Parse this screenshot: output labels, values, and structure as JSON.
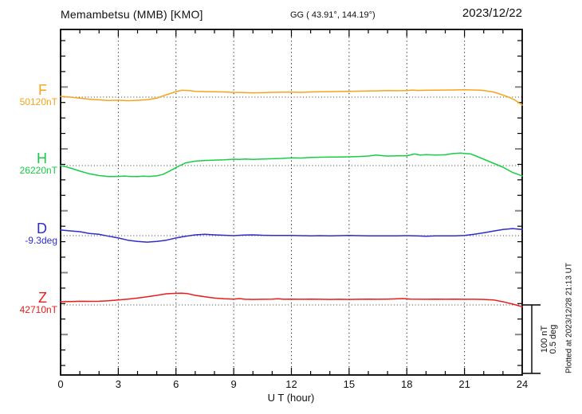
{
  "header": {
    "station_title": "Memambetsu (MMB)  [KMO]",
    "gg_coords": "GG ( 43.91°, 144.19°)",
    "date": "2023/12/22"
  },
  "axis": {
    "x_label": "U T (hour)",
    "x_ticks": [
      "0",
      "3",
      "6",
      "9",
      "12",
      "15",
      "18",
      "21",
      "24"
    ]
  },
  "scale_bar": {
    "line1": "100 nT",
    "line2": "0.5 deg"
  },
  "footer_note": "Plotted at 2023/12/28 21:13 UT",
  "chart_data": {
    "type": "line",
    "title": "Memambetsu (MMB) [KMO] magnetogram 2023/12/22",
    "xlabel": "U T (hour)",
    "x_range": [
      0,
      24
    ],
    "x_ticks": [
      0,
      3,
      6,
      9,
      12,
      15,
      18,
      21,
      24
    ],
    "grid": "dotted vertical every 3 h; dotted horizontal baseline per component",
    "scale_per_division": {
      "nT": 100,
      "deg": 0.5
    },
    "series": [
      {
        "name": "F",
        "baseline_label": "50120nT",
        "baseline_value": 50120,
        "unit": "nT",
        "color": "#F7A419",
        "points": [
          [
            0,
            1
          ],
          [
            0.5,
            0
          ],
          [
            1,
            -1.5
          ],
          [
            1.5,
            -3
          ],
          [
            2,
            -4
          ],
          [
            2.5,
            -5
          ],
          [
            3,
            -4.5
          ],
          [
            3.5,
            -5.2
          ],
          [
            4,
            -4.7
          ],
          [
            4.5,
            -3.8
          ],
          [
            5,
            -1.5
          ],
          [
            5.5,
            3.5
          ],
          [
            6,
            8
          ],
          [
            6.3,
            10
          ],
          [
            6.7,
            9.5
          ],
          [
            7,
            8.5
          ],
          [
            7.5,
            8
          ],
          [
            8,
            7.8
          ],
          [
            8.5,
            7.5
          ],
          [
            9,
            7
          ],
          [
            9.5,
            6.8
          ],
          [
            10,
            6.3
          ],
          [
            10.5,
            6.5
          ],
          [
            11,
            7
          ],
          [
            11.5,
            7.2
          ],
          [
            12,
            7.3
          ],
          [
            12.5,
            7
          ],
          [
            13,
            7.5
          ],
          [
            13.5,
            7.8
          ],
          [
            14,
            8
          ],
          [
            14.5,
            8.2
          ],
          [
            15,
            8.5
          ],
          [
            15.5,
            8.7
          ],
          [
            16,
            9
          ],
          [
            16.5,
            9.2
          ],
          [
            17,
            9.5
          ],
          [
            17.5,
            9.3
          ],
          [
            18,
            9.7
          ],
          [
            18.3,
            10.3
          ],
          [
            18.6,
            9.8
          ],
          [
            19,
            10
          ],
          [
            19.5,
            10.2
          ],
          [
            20,
            10.3
          ],
          [
            20.5,
            10.5
          ],
          [
            21,
            10.8
          ],
          [
            21.4,
            10.5
          ],
          [
            21.8,
            10.2
          ],
          [
            22,
            9.5
          ],
          [
            22.5,
            7.5
          ],
          [
            23,
            3
          ],
          [
            23.3,
            0
          ],
          [
            23.6,
            -4
          ],
          [
            24,
            -11.5
          ]
        ]
      },
      {
        "name": "H",
        "baseline_label": "26220nT",
        "baseline_value": 26220,
        "unit": "nT",
        "color": "#17CE45",
        "points": [
          [
            0,
            0
          ],
          [
            0.3,
            -2
          ],
          [
            0.5,
            -3.5
          ],
          [
            1,
            -8
          ],
          [
            1.5,
            -12
          ],
          [
            2,
            -14.5
          ],
          [
            2.5,
            -16
          ],
          [
            3,
            -15.8
          ],
          [
            3.3,
            -15.2
          ],
          [
            3.6,
            -15.8
          ],
          [
            4,
            -16
          ],
          [
            4.3,
            -15.4
          ],
          [
            4.6,
            -15.8
          ],
          [
            5,
            -15
          ],
          [
            5.3,
            -13
          ],
          [
            5.6,
            -9
          ],
          [
            6,
            -3
          ],
          [
            6.2,
            0
          ],
          [
            6.5,
            4
          ],
          [
            7,
            6.5
          ],
          [
            7.5,
            7.5
          ],
          [
            8,
            8
          ],
          [
            8.5,
            8.5
          ],
          [
            9,
            9.3
          ],
          [
            9.3,
            9
          ],
          [
            9.6,
            9.5
          ],
          [
            10,
            9
          ],
          [
            10.5,
            9.5
          ],
          [
            11,
            10
          ],
          [
            11.5,
            10.5
          ],
          [
            12,
            11.3
          ],
          [
            12.5,
            11
          ],
          [
            13,
            12
          ],
          [
            13.5,
            12.2
          ],
          [
            14,
            12.4
          ],
          [
            14.5,
            12.6
          ],
          [
            15,
            12.8
          ],
          [
            15.5,
            13.2
          ],
          [
            16,
            14
          ],
          [
            16.4,
            15.5
          ],
          [
            16.7,
            14.5
          ],
          [
            17,
            14
          ],
          [
            17.5,
            14.2
          ],
          [
            18,
            14.4
          ],
          [
            18.4,
            17
          ],
          [
            18.7,
            15.5
          ],
          [
            19,
            15.9
          ],
          [
            19.5,
            15.5
          ],
          [
            20,
            15.8
          ],
          [
            20.4,
            17.5
          ],
          [
            20.8,
            18.2
          ],
          [
            21,
            17.8
          ],
          [
            21.3,
            17.2
          ],
          [
            21.6,
            14
          ],
          [
            22,
            9.3
          ],
          [
            22.5,
            3.5
          ],
          [
            23,
            -2.3
          ],
          [
            23.5,
            -10
          ],
          [
            24,
            -15
          ]
        ]
      },
      {
        "name": "D",
        "baseline_label": "-9.3deg",
        "baseline_value": -9.3,
        "unit": "deg",
        "color": "#2C2DCB",
        "points": [
          [
            0,
            0.041
          ],
          [
            0.5,
            0.035
          ],
          [
            1,
            0.029
          ],
          [
            1.5,
            0.016
          ],
          [
            2,
            0.01
          ],
          [
            2.5,
            -0.004
          ],
          [
            3,
            -0.017
          ],
          [
            3.5,
            -0.033
          ],
          [
            4,
            -0.042
          ],
          [
            4.5,
            -0.047
          ],
          [
            5,
            -0.042
          ],
          [
            5.5,
            -0.033
          ],
          [
            6,
            -0.017
          ],
          [
            6.5,
            -0.004
          ],
          [
            7,
            0.006
          ],
          [
            7.5,
            0.01
          ],
          [
            8,
            0.006
          ],
          [
            8.5,
            0.003
          ],
          [
            9,
            0
          ],
          [
            9.5,
            0.004
          ],
          [
            10,
            0.006
          ],
          [
            10.5,
            0.003
          ],
          [
            11,
            0.002
          ],
          [
            11.5,
            0.001
          ],
          [
            12,
            0.002
          ],
          [
            12.5,
            0
          ],
          [
            13,
            -0.001
          ],
          [
            13.5,
            0
          ],
          [
            14,
            -0.001
          ],
          [
            14.5,
            0
          ],
          [
            15,
            0.002
          ],
          [
            15.5,
            0
          ],
          [
            16,
            -0.002
          ],
          [
            16.5,
            -0.001
          ],
          [
            17,
            -0.002
          ],
          [
            17.5,
            -0.001
          ],
          [
            18,
            0
          ],
          [
            18.5,
            -0.002
          ],
          [
            19,
            -0.004
          ],
          [
            19.5,
            -0.002
          ],
          [
            20,
            -0.001
          ],
          [
            20.5,
            -0.002
          ],
          [
            21,
            0.002
          ],
          [
            21.5,
            0.01
          ],
          [
            22,
            0.021
          ],
          [
            22.5,
            0.033
          ],
          [
            23,
            0.045
          ],
          [
            23.5,
            0.052
          ],
          [
            24,
            0.045
          ]
        ]
      },
      {
        "name": "Z",
        "baseline_label": "42710nT",
        "baseline_value": 42710,
        "unit": "nT",
        "color": "#EA1C1C",
        "points": [
          [
            0,
            4.7
          ],
          [
            0.5,
            5
          ],
          [
            1,
            5.4
          ],
          [
            1.5,
            5.2
          ],
          [
            2,
            5.4
          ],
          [
            2.5,
            6.2
          ],
          [
            3,
            7.3
          ],
          [
            3.5,
            8.5
          ],
          [
            4,
            10
          ],
          [
            4.5,
            12
          ],
          [
            5,
            14
          ],
          [
            5.5,
            16.3
          ],
          [
            6,
            17
          ],
          [
            6.3,
            17.2
          ],
          [
            6.6,
            16.5
          ],
          [
            7,
            14
          ],
          [
            7.5,
            12
          ],
          [
            8,
            10
          ],
          [
            8.5,
            9
          ],
          [
            9,
            8.5
          ],
          [
            9.3,
            9.3
          ],
          [
            9.6,
            8.3
          ],
          [
            10,
            8
          ],
          [
            10.5,
            8.3
          ],
          [
            11,
            8.5
          ],
          [
            11.3,
            9
          ],
          [
            11.6,
            8.3
          ],
          [
            12,
            8.5
          ],
          [
            12.5,
            8.3
          ],
          [
            13,
            8.5
          ],
          [
            13.5,
            8.3
          ],
          [
            14,
            8
          ],
          [
            14.5,
            8.2
          ],
          [
            15,
            8
          ],
          [
            15.5,
            8.2
          ],
          [
            16,
            8.5
          ],
          [
            16.5,
            8.3
          ],
          [
            17,
            8.5
          ],
          [
            17.8,
            9.3
          ],
          [
            18.2,
            8.5
          ],
          [
            19,
            8.3
          ],
          [
            19.5,
            8.5
          ],
          [
            20,
            8.3
          ],
          [
            20.5,
            8.5
          ],
          [
            21,
            8.3
          ],
          [
            21.5,
            8.2
          ],
          [
            22,
            8
          ],
          [
            22.5,
            7.3
          ],
          [
            23,
            4.7
          ],
          [
            23.5,
            1.3
          ],
          [
            23.8,
            -1
          ],
          [
            24,
            -2.7
          ]
        ]
      }
    ]
  }
}
